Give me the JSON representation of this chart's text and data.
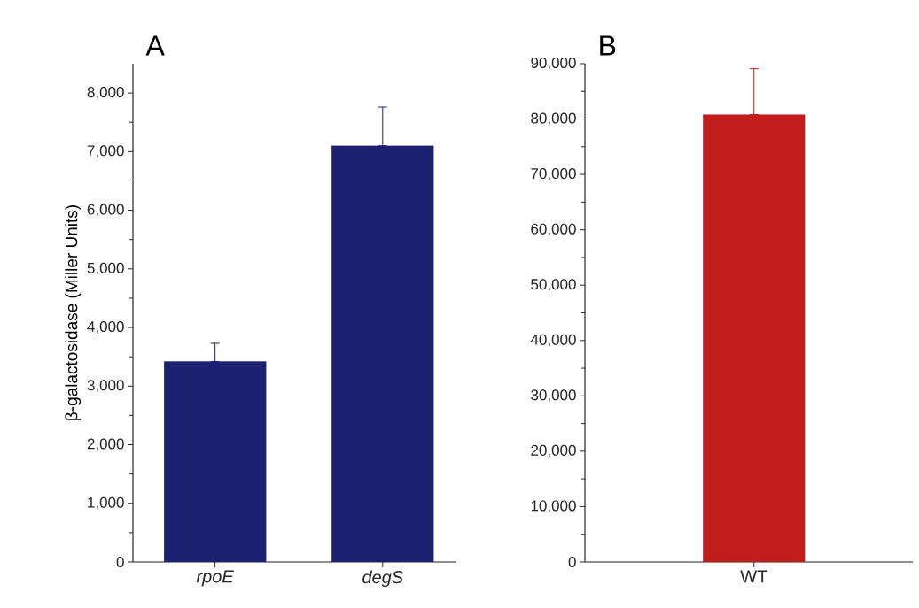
{
  "chart_data": [
    {
      "type": "bar",
      "title": "A",
      "ylabel": "β-galactosidase (Miller Units)",
      "categories": [
        "*rpoE*",
        "*degS*"
      ],
      "values": [
        3420,
        7100
      ],
      "color": "#1b2070",
      "errors": [
        [
          3420,
          3730
        ],
        [
          7100,
          7760
        ]
      ],
      "ylim": [
        0,
        8500
      ],
      "yticks": [
        0,
        {
          "value": 1000,
          "label": "1,000"
        },
        {
          "value": 2000,
          "label": "2,000"
        },
        {
          "value": 3000,
          "label": "3,000"
        },
        {
          "value": 4000,
          "label": "4,000"
        },
        {
          "value": 5000,
          "label": "5,000"
        },
        {
          "value": 6000,
          "label": "6,000"
        },
        {
          "value": 7000,
          "label": "7,000"
        },
        {
          "value": 8000,
          "label": "8,000"
        }
      ]
    },
    {
      "type": "bar",
      "title": "B",
      "categories": [
        "WT"
      ],
      "values": [
        80800
      ],
      "color": "#c21c1c",
      "errors": [
        [
          80800,
          89100
        ]
      ],
      "ylim": [
        0,
        90000
      ],
      "yticks": [
        0,
        {
          "value": 10000,
          "label": "10,000"
        },
        {
          "value": 20000,
          "label": "20,000"
        },
        {
          "value": 30000,
          "label": "30,000"
        },
        {
          "value": 40000,
          "label": "40,000"
        },
        {
          "value": 50000,
          "label": "50,000"
        },
        {
          "value": 60000,
          "label": "60,000"
        },
        {
          "value": 70000,
          "label": "70,000"
        },
        {
          "value": 80000,
          "label": "80,000"
        },
        {
          "value": 90000,
          "label": "90,000"
        }
      ]
    }
  ]
}
